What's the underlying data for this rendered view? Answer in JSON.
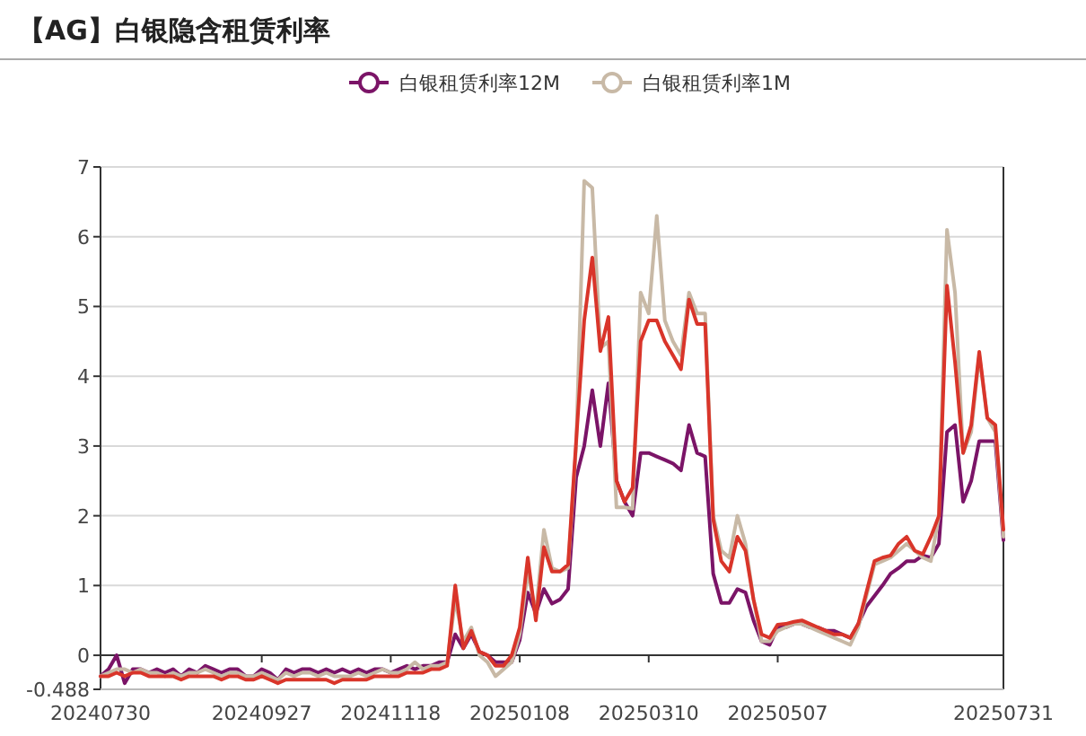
{
  "chart_data": {
    "type": "line",
    "title": "【AG】白银隐含租赁利率",
    "categories": [
      "20240730",
      null,
      null,
      null,
      null,
      null,
      null,
      null,
      null,
      null,
      null,
      null,
      null,
      null,
      null,
      null,
      null,
      null,
      null,
      null,
      "20240927",
      null,
      null,
      null,
      null,
      null,
      null,
      null,
      null,
      null,
      null,
      null,
      null,
      null,
      null,
      null,
      "20241118",
      null,
      null,
      null,
      null,
      null,
      null,
      null,
      null,
      null,
      null,
      null,
      null,
      null,
      null,
      null,
      "20250108",
      null,
      null,
      null,
      null,
      null,
      null,
      null,
      null,
      null,
      null,
      null,
      null,
      null,
      null,
      null,
      "20250310",
      null,
      null,
      null,
      null,
      null,
      null,
      null,
      null,
      null,
      null,
      null,
      null,
      null,
      null,
      null,
      "20250507",
      null,
      null,
      null,
      null,
      null,
      null,
      null,
      null,
      null,
      null,
      null,
      null,
      null,
      null,
      null,
      null,
      null,
      null,
      null,
      null,
      null,
      null,
      null,
      null,
      null,
      null,
      null,
      "20250731"
    ],
    "series": [
      {
        "name": "白银租赁利率12M",
        "color": "#7b1467",
        "values": [
          -0.3,
          -0.2,
          0.0,
          -0.4,
          -0.2,
          -0.2,
          -0.25,
          -0.2,
          -0.25,
          -0.2,
          -0.3,
          -0.2,
          -0.25,
          -0.15,
          -0.2,
          -0.25,
          -0.2,
          -0.2,
          -0.3,
          -0.3,
          -0.2,
          -0.25,
          -0.35,
          -0.2,
          -0.25,
          -0.2,
          -0.2,
          -0.25,
          -0.2,
          -0.25,
          -0.2,
          -0.25,
          -0.2,
          -0.25,
          -0.2,
          -0.2,
          -0.25,
          -0.2,
          -0.15,
          -0.2,
          -0.15,
          -0.15,
          -0.1,
          -0.1,
          0.3,
          0.1,
          0.3,
          0.05,
          0.0,
          -0.1,
          -0.1,
          -0.1,
          0.22,
          0.9,
          0.6,
          0.95,
          0.74,
          0.8,
          0.95,
          2.55,
          3.0,
          3.8,
          3.0,
          3.9,
          2.5,
          2.2,
          2.0,
          2.9,
          2.9,
          2.85,
          2.8,
          2.75,
          2.65,
          3.3,
          2.9,
          2.85,
          1.17,
          0.75,
          0.75,
          0.95,
          0.9,
          0.5,
          0.2,
          0.15,
          0.4,
          0.4,
          0.45,
          0.45,
          0.4,
          0.4,
          0.35,
          0.35,
          0.3,
          0.25,
          0.45,
          0.7,
          0.85,
          1.0,
          1.17,
          1.25,
          1.35,
          1.35,
          1.43,
          1.4,
          1.6,
          3.2,
          3.3,
          2.2,
          2.5,
          3.07,
          3.07,
          3.07,
          1.65
        ]
      },
      {
        "name": "白银租赁利率1M",
        "color": "#c8b9a6",
        "values": [
          -0.3,
          -0.25,
          -0.2,
          -0.2,
          -0.25,
          -0.2,
          -0.25,
          -0.25,
          -0.3,
          -0.25,
          -0.3,
          -0.25,
          -0.25,
          -0.2,
          -0.25,
          -0.3,
          -0.25,
          -0.25,
          -0.3,
          -0.3,
          -0.25,
          -0.3,
          -0.35,
          -0.25,
          -0.3,
          -0.25,
          -0.25,
          -0.3,
          -0.25,
          -0.3,
          -0.3,
          -0.3,
          -0.25,
          -0.3,
          -0.25,
          -0.2,
          -0.25,
          -0.25,
          -0.2,
          -0.1,
          -0.2,
          -0.15,
          -0.15,
          -0.1,
          0.8,
          0.2,
          0.4,
          0.0,
          -0.1,
          -0.3,
          -0.2,
          -0.1,
          0.3,
          1.2,
          0.6,
          1.8,
          1.25,
          1.2,
          1.25,
          3.0,
          6.8,
          6.7,
          4.4,
          4.5,
          2.12,
          2.12,
          2.1,
          5.2,
          4.9,
          6.3,
          4.8,
          4.5,
          4.3,
          5.2,
          4.9,
          4.9,
          2.0,
          1.5,
          1.4,
          2.0,
          1.6,
          0.8,
          0.2,
          0.2,
          0.35,
          0.4,
          0.45,
          0.45,
          0.4,
          0.35,
          0.3,
          0.25,
          0.2,
          0.15,
          0.4,
          0.85,
          1.3,
          1.35,
          1.4,
          1.5,
          1.6,
          1.5,
          1.4,
          1.35,
          2.0,
          6.1,
          5.2,
          2.9,
          3.2,
          4.3,
          3.4,
          3.2,
          1.7
        ]
      },
      {
        "color": "#d9352a",
        "values": [
          -0.3,
          -0.3,
          -0.25,
          -0.3,
          -0.25,
          -0.25,
          -0.3,
          -0.3,
          -0.3,
          -0.3,
          -0.35,
          -0.3,
          -0.3,
          -0.3,
          -0.3,
          -0.35,
          -0.3,
          -0.3,
          -0.35,
          -0.35,
          -0.3,
          -0.35,
          -0.4,
          -0.35,
          -0.35,
          -0.35,
          -0.35,
          -0.35,
          -0.35,
          -0.4,
          -0.35,
          -0.35,
          -0.35,
          -0.35,
          -0.3,
          -0.3,
          -0.3,
          -0.3,
          -0.25,
          -0.25,
          -0.25,
          -0.2,
          -0.2,
          -0.15,
          1.0,
          0.1,
          0.35,
          0.05,
          0.0,
          -0.15,
          -0.15,
          0.0,
          0.4,
          1.4,
          0.5,
          1.55,
          1.2,
          1.2,
          1.3,
          3.07,
          4.8,
          5.7,
          4.36,
          4.85,
          2.5,
          2.2,
          2.4,
          4.5,
          4.8,
          4.8,
          4.5,
          4.3,
          4.1,
          5.1,
          4.75,
          4.75,
          1.95,
          1.35,
          1.2,
          1.7,
          1.5,
          0.8,
          0.3,
          0.25,
          0.44,
          0.45,
          0.48,
          0.5,
          0.45,
          0.4,
          0.35,
          0.3,
          0.3,
          0.25,
          0.45,
          0.9,
          1.35,
          1.4,
          1.43,
          1.6,
          1.7,
          1.5,
          1.45,
          1.7,
          2.0,
          5.3,
          4.2,
          2.9,
          3.3,
          4.35,
          3.4,
          3.3,
          1.8
        ]
      }
    ],
    "ylim": [
      -0.488,
      7
    ],
    "yticks": [
      {
        "value": -0.488,
        "label": "-0.488"
      },
      0,
      1,
      2,
      3,
      4,
      5,
      6,
      7
    ],
    "grid": "y",
    "legend": "top",
    "line_style": "solid"
  }
}
